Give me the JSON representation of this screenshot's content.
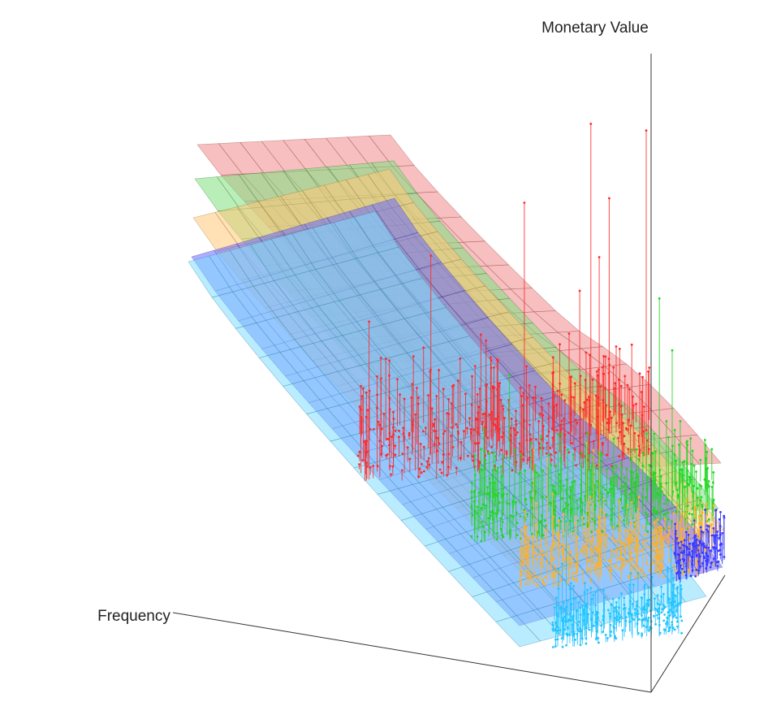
{
  "chart_data": {
    "type": "3d-surface-scatter",
    "title": "",
    "axis_labels": {
      "z": "Monetary Value",
      "x": "Frequency"
    },
    "surfaces": [
      {
        "color": "#f08a8a",
        "edge": "#8a3a3a",
        "level": 4,
        "profile": [
          1.0,
          0.86,
          0.7,
          0.53,
          0.37,
          0.23,
          0.12,
          0.05,
          0.02,
          0.02,
          0.04,
          0.05,
          0.05,
          0.04,
          0.02
        ]
      },
      {
        "color": "#7fe07f",
        "edge": "#2f6f2f",
        "level": 3,
        "profile": [
          1.0,
          0.86,
          0.7,
          0.53,
          0.37,
          0.23,
          0.12,
          0.05,
          0.02,
          0.02,
          0.04,
          0.05,
          0.05,
          0.04,
          0.02
        ]
      },
      {
        "color": "#ffc978",
        "edge": "#8a6a30",
        "level": 2,
        "profile": [
          1.0,
          0.86,
          0.7,
          0.53,
          0.37,
          0.23,
          0.12,
          0.05,
          0.02,
          0.02,
          0.04,
          0.05,
          0.05,
          0.04,
          0.02
        ]
      },
      {
        "color": "#6a6aff",
        "edge": "#2a2a8a",
        "level": 1,
        "profile": [
          1.0,
          0.86,
          0.7,
          0.53,
          0.37,
          0.23,
          0.12,
          0.05,
          0.02,
          0.02,
          0.04,
          0.05,
          0.05,
          0.04,
          0.02
        ]
      },
      {
        "color": "#7fdcff",
        "edge": "#2a7a9a",
        "level": 0,
        "profile": [
          1.0,
          0.86,
          0.7,
          0.53,
          0.37,
          0.23,
          0.12,
          0.05,
          0.02,
          0.02,
          0.04,
          0.05,
          0.05,
          0.04,
          0.02
        ]
      }
    ],
    "scatter_series": [
      {
        "color": "#ff2a2a",
        "level": 4
      },
      {
        "color": "#22d622",
        "level": 3
      },
      {
        "color": "#ffb02a",
        "level": 2
      },
      {
        "color": "#22c4ff",
        "level": 0
      },
      {
        "color": "#3a3aff",
        "level": 1
      }
    ],
    "grid": false,
    "legend": "none"
  }
}
